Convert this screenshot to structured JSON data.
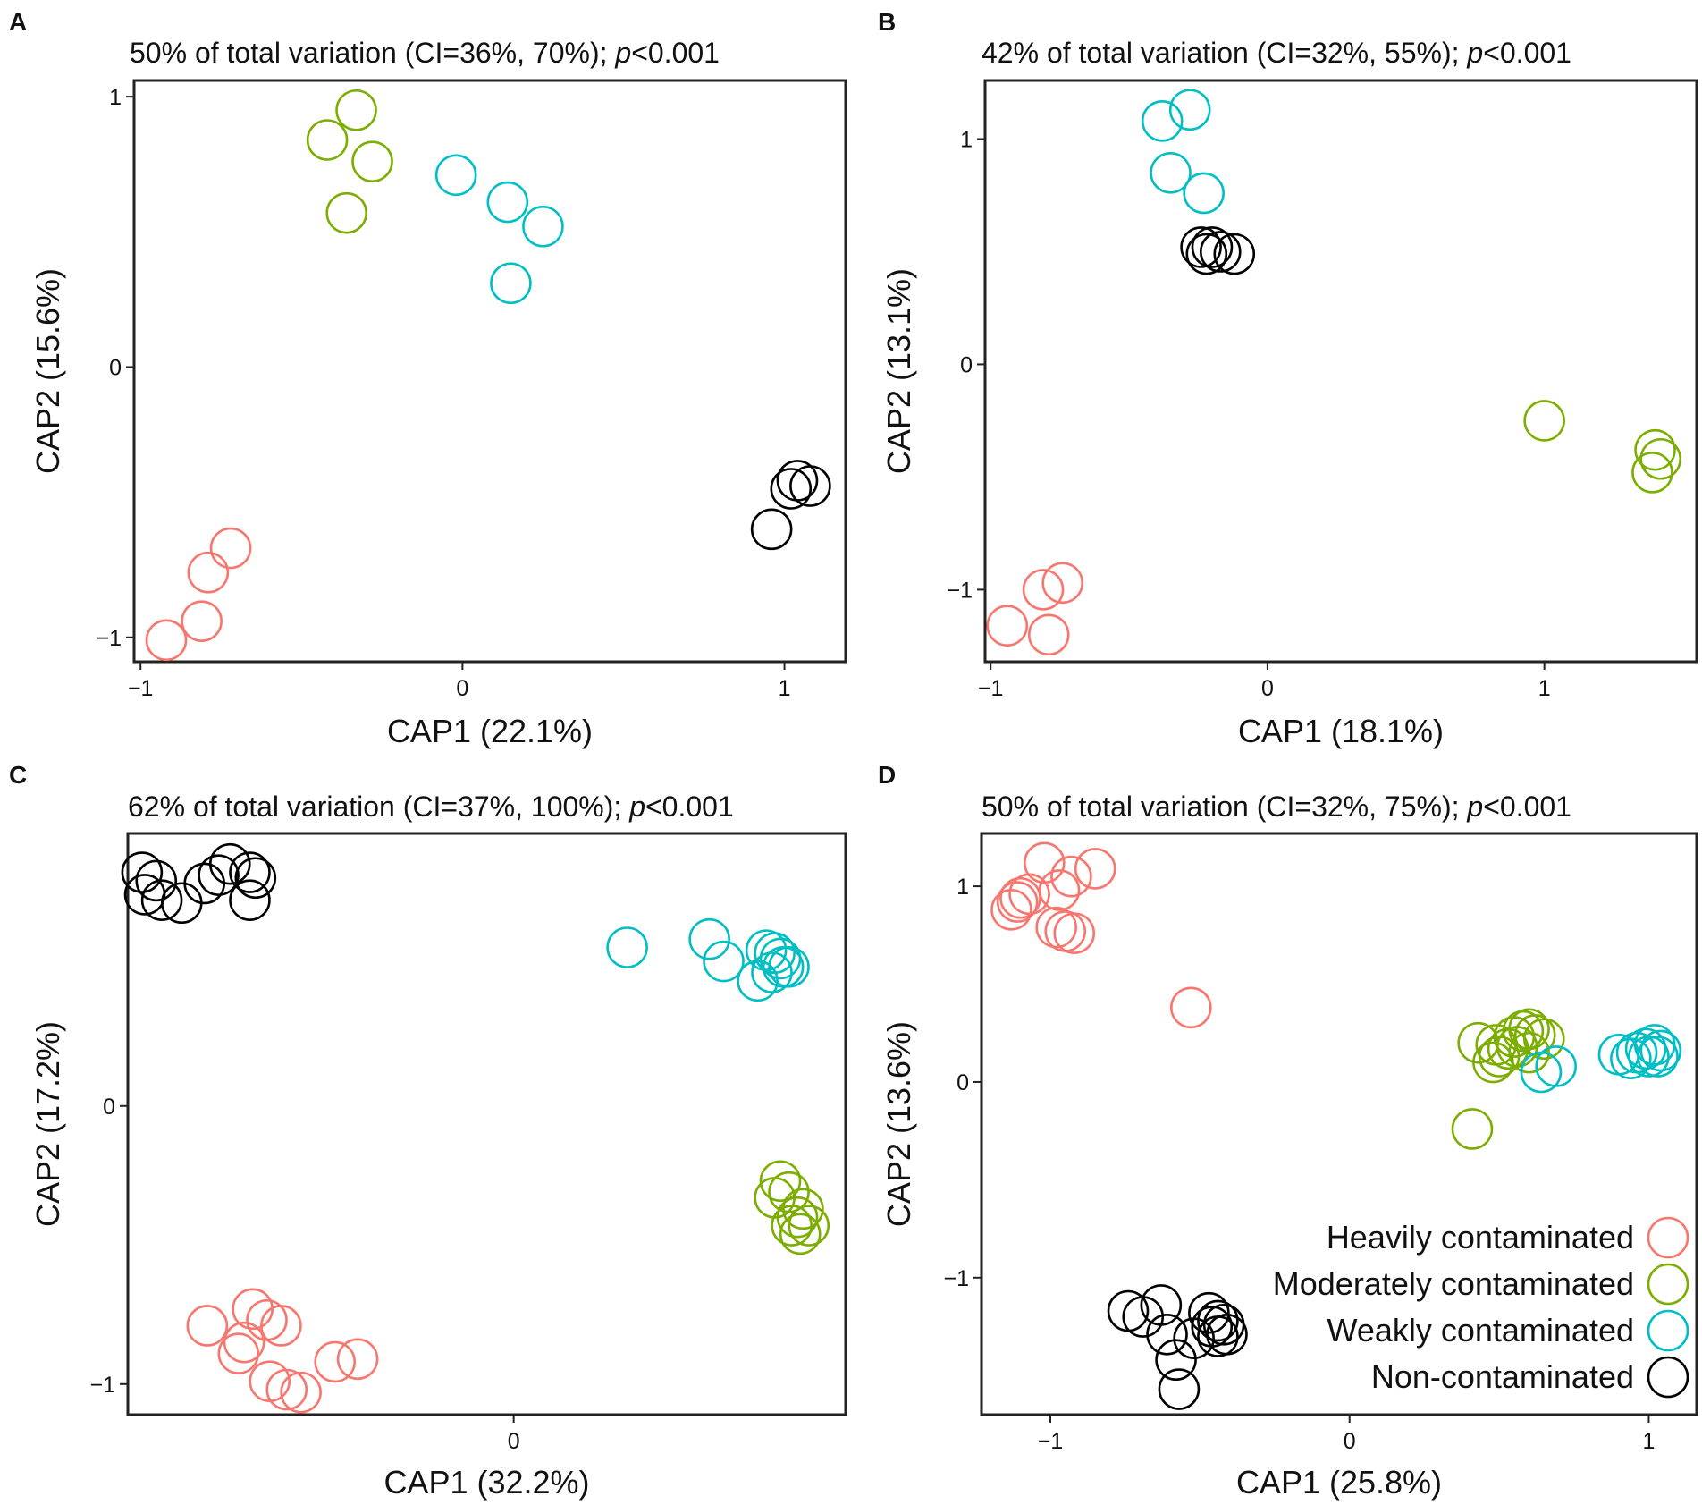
{
  "colors": {
    "heavily": "#F8766D",
    "moderately": "#7CAE00",
    "weakly": "#00BFC4",
    "non": "#000000"
  },
  "legend": {
    "items": [
      {
        "group": "heavily",
        "label": "Heavily contaminated"
      },
      {
        "group": "moderately",
        "label": "Moderately contaminated"
      },
      {
        "group": "weakly",
        "label": "Weakly contaminated"
      },
      {
        "group": "non",
        "label": "Non-contaminated"
      }
    ]
  },
  "chart_data": [
    {
      "type": "scatter",
      "panel": "A",
      "title_main": "50% of total variation (CI=36%, 70%); ",
      "title_p": "p",
      "title_tail": "<0.001",
      "xlabel": "CAP1 (22.1%)",
      "ylabel": "CAP2 (15.6%)",
      "xlim": [
        -1.02,
        1.19
      ],
      "ylim": [
        -1.09,
        1.06
      ],
      "xticks": [
        -1,
        0,
        1
      ],
      "xtick_labels": [
        "−1",
        "0",
        "1"
      ],
      "yticks": [
        -1,
        0,
        1
      ],
      "ytick_labels": [
        "−1",
        "0",
        "1"
      ],
      "series": [
        {
          "name": "Heavily contaminated",
          "group": "heavily",
          "points": [
            [
              -0.92,
              -1.01
            ],
            [
              -0.81,
              -0.94
            ],
            [
              -0.79,
              -0.76
            ],
            [
              -0.72,
              -0.67
            ]
          ]
        },
        {
          "name": "Moderately contaminated",
          "group": "moderately",
          "points": [
            [
              -0.42,
              0.84
            ],
            [
              -0.33,
              0.95
            ],
            [
              -0.28,
              0.76
            ],
            [
              -0.36,
              0.57
            ]
          ]
        },
        {
          "name": "Weakly contaminated",
          "group": "weakly",
          "points": [
            [
              -0.02,
              0.71
            ],
            [
              0.14,
              0.61
            ],
            [
              0.25,
              0.52
            ],
            [
              0.15,
              0.31
            ]
          ]
        },
        {
          "name": "Non-contaminated",
          "group": "non",
          "points": [
            [
              1.04,
              -0.42
            ],
            [
              1.08,
              -0.44
            ],
            [
              1.02,
              -0.45
            ],
            [
              0.96,
              -0.6
            ]
          ]
        }
      ]
    },
    {
      "type": "scatter",
      "panel": "B",
      "title_main": "42% of total variation (CI=32%, 55%); ",
      "title_p": "p",
      "title_tail": "<0.001",
      "xlabel": "CAP1 (18.1%)",
      "ylabel": "CAP2 (13.1%)",
      "xlim": [
        -1.02,
        1.55
      ],
      "ylim": [
        -1.32,
        1.26
      ],
      "xticks": [
        -1,
        0,
        1
      ],
      "xtick_labels": [
        "−1",
        "0",
        "1"
      ],
      "yticks": [
        -1,
        0,
        1
      ],
      "ytick_labels": [
        "−1",
        "0",
        "1"
      ],
      "series": [
        {
          "name": "Heavily contaminated",
          "group": "heavily",
          "points": [
            [
              -0.94,
              -1.16
            ],
            [
              -0.81,
              -1.0
            ],
            [
              -0.74,
              -0.97
            ],
            [
              -0.79,
              -1.2
            ]
          ]
        },
        {
          "name": "Moderately contaminated",
          "group": "moderately",
          "points": [
            [
              1.0,
              -0.25
            ],
            [
              1.4,
              -0.38
            ],
            [
              1.42,
              -0.42
            ],
            [
              1.39,
              -0.48
            ]
          ]
        },
        {
          "name": "Weakly contaminated",
          "group": "weakly",
          "points": [
            [
              -0.38,
              1.08
            ],
            [
              -0.28,
              1.13
            ],
            [
              -0.35,
              0.85
            ],
            [
              -0.23,
              0.76
            ]
          ]
        },
        {
          "name": "Non-contaminated",
          "group": "non",
          "points": [
            [
              -0.24,
              0.52
            ],
            [
              -0.2,
              0.52
            ],
            [
              -0.17,
              0.5
            ],
            [
              -0.12,
              0.49
            ],
            [
              -0.22,
              0.49
            ]
          ]
        }
      ]
    },
    {
      "type": "scatter",
      "panel": "C",
      "title_main": "62% of total variation (CI=37%, 100%); ",
      "title_p": "p",
      "title_tail": "<0.001",
      "xlabel": "CAP1 (32.2%)",
      "ylabel": "CAP2 (17.2%)",
      "xlim": [
        -1.36,
        1.17
      ],
      "ylim": [
        -1.11,
        0.98
      ],
      "xticks": [
        0
      ],
      "xtick_labels": [
        "0"
      ],
      "yticks": [
        -1,
        0
      ],
      "ytick_labels": [
        "−1",
        "0"
      ],
      "series": [
        {
          "name": "Heavily contaminated",
          "group": "heavily",
          "points": [
            [
              -1.08,
              -0.79
            ],
            [
              -0.92,
              -0.73
            ],
            [
              -0.87,
              -0.77
            ],
            [
              -0.82,
              -0.79
            ],
            [
              -0.95,
              -0.85
            ],
            [
              -0.97,
              -0.89
            ],
            [
              -0.86,
              -0.99
            ],
            [
              -0.8,
              -1.02
            ],
            [
              -0.75,
              -1.03
            ],
            [
              -0.63,
              -0.92
            ],
            [
              -0.55,
              -0.91
            ]
          ]
        },
        {
          "name": "Moderately contaminated",
          "group": "moderately",
          "points": [
            [
              0.94,
              -0.27
            ],
            [
              0.92,
              -0.33
            ],
            [
              0.97,
              -0.31
            ],
            [
              1.02,
              -0.37
            ],
            [
              1.0,
              -0.4
            ],
            [
              0.98,
              -0.43
            ],
            [
              1.04,
              -0.43
            ],
            [
              1.01,
              -0.46
            ]
          ]
        },
        {
          "name": "Weakly contaminated",
          "group": "weakly",
          "points": [
            [
              0.4,
              0.57
            ],
            [
              0.69,
              0.6
            ],
            [
              0.74,
              0.52
            ],
            [
              0.89,
              0.56
            ],
            [
              0.92,
              0.55
            ],
            [
              0.94,
              0.53
            ],
            [
              0.95,
              0.5
            ],
            [
              0.91,
              0.48
            ],
            [
              0.86,
              0.45
            ],
            [
              0.97,
              0.5
            ]
          ]
        },
        {
          "name": "Non-contaminated",
          "group": "non",
          "points": [
            [
              -1.31,
              0.84
            ],
            [
              -1.26,
              0.81
            ],
            [
              -1.3,
              0.76
            ],
            [
              -1.24,
              0.74
            ],
            [
              -1.17,
              0.73
            ],
            [
              -1.09,
              0.8
            ],
            [
              -1.04,
              0.83
            ],
            [
              -1.0,
              0.87
            ],
            [
              -0.93,
              0.84
            ],
            [
              -0.91,
              0.82
            ],
            [
              -0.93,
              0.74
            ]
          ]
        }
      ]
    },
    {
      "type": "scatter",
      "panel": "D",
      "title_main": "50% of total variation (CI=32%, 75%); ",
      "title_p": "p",
      "title_tail": "<0.001",
      "xlabel": "CAP1 (25.8%)",
      "ylabel": "CAP2 (13.6%)",
      "xlim": [
        -1.23,
        1.16
      ],
      "ylim": [
        -1.7,
        1.27
      ],
      "xticks": [
        -1,
        0,
        1
      ],
      "xtick_labels": [
        "−1",
        "0",
        "1"
      ],
      "yticks": [
        -1,
        0,
        1
      ],
      "ytick_labels": [
        "−1",
        "0",
        "1"
      ],
      "legend_position": "bottom-right",
      "series": [
        {
          "name": "Heavily contaminated",
          "group": "heavily",
          "points": [
            [
              -1.13,
              0.88
            ],
            [
              -1.11,
              0.92
            ],
            [
              -1.1,
              0.94
            ],
            [
              -1.07,
              0.96
            ],
            [
              -1.02,
              1.12
            ],
            [
              -0.97,
              0.98
            ],
            [
              -0.93,
              1.05
            ],
            [
              -0.85,
              1.09
            ],
            [
              -0.98,
              0.79
            ],
            [
              -0.95,
              0.77
            ],
            [
              -0.92,
              0.76
            ],
            [
              -0.53,
              0.38
            ]
          ]
        },
        {
          "name": "Moderately contaminated",
          "group": "moderately",
          "points": [
            [
              0.43,
              0.2
            ],
            [
              0.49,
              0.19
            ],
            [
              0.5,
              0.13
            ],
            [
              0.48,
              0.1
            ],
            [
              0.53,
              0.17
            ],
            [
              0.55,
              0.23
            ],
            [
              0.58,
              0.26
            ],
            [
              0.6,
              0.27
            ],
            [
              0.62,
              0.24
            ],
            [
              0.65,
              0.22
            ],
            [
              0.56,
              0.18
            ],
            [
              0.6,
              0.15
            ],
            [
              0.41,
              -0.24
            ]
          ]
        },
        {
          "name": "Weakly contaminated",
          "group": "weakly",
          "points": [
            [
              0.64,
              0.05
            ],
            [
              0.69,
              0.08
            ],
            [
              0.9,
              0.14
            ],
            [
              0.94,
              0.12
            ],
            [
              0.96,
              0.15
            ],
            [
              0.99,
              0.17
            ],
            [
              1.02,
              0.19
            ],
            [
              1.04,
              0.16
            ],
            [
              1.0,
              0.13
            ],
            [
              1.03,
              0.13
            ]
          ]
        },
        {
          "name": "Non-contaminated",
          "group": "non",
          "points": [
            [
              -0.74,
              -1.17
            ],
            [
              -0.69,
              -1.2
            ],
            [
              -0.63,
              -1.14
            ],
            [
              -0.61,
              -1.29
            ],
            [
              -0.58,
              -1.42
            ],
            [
              -0.57,
              -1.57
            ],
            [
              -0.52,
              -1.31
            ],
            [
              -0.47,
              -1.18
            ],
            [
              -0.46,
              -1.25
            ],
            [
              -0.44,
              -1.22
            ],
            [
              -0.42,
              -1.24
            ],
            [
              -0.41,
              -1.29
            ],
            [
              -0.44,
              -1.3
            ]
          ]
        }
      ]
    }
  ]
}
